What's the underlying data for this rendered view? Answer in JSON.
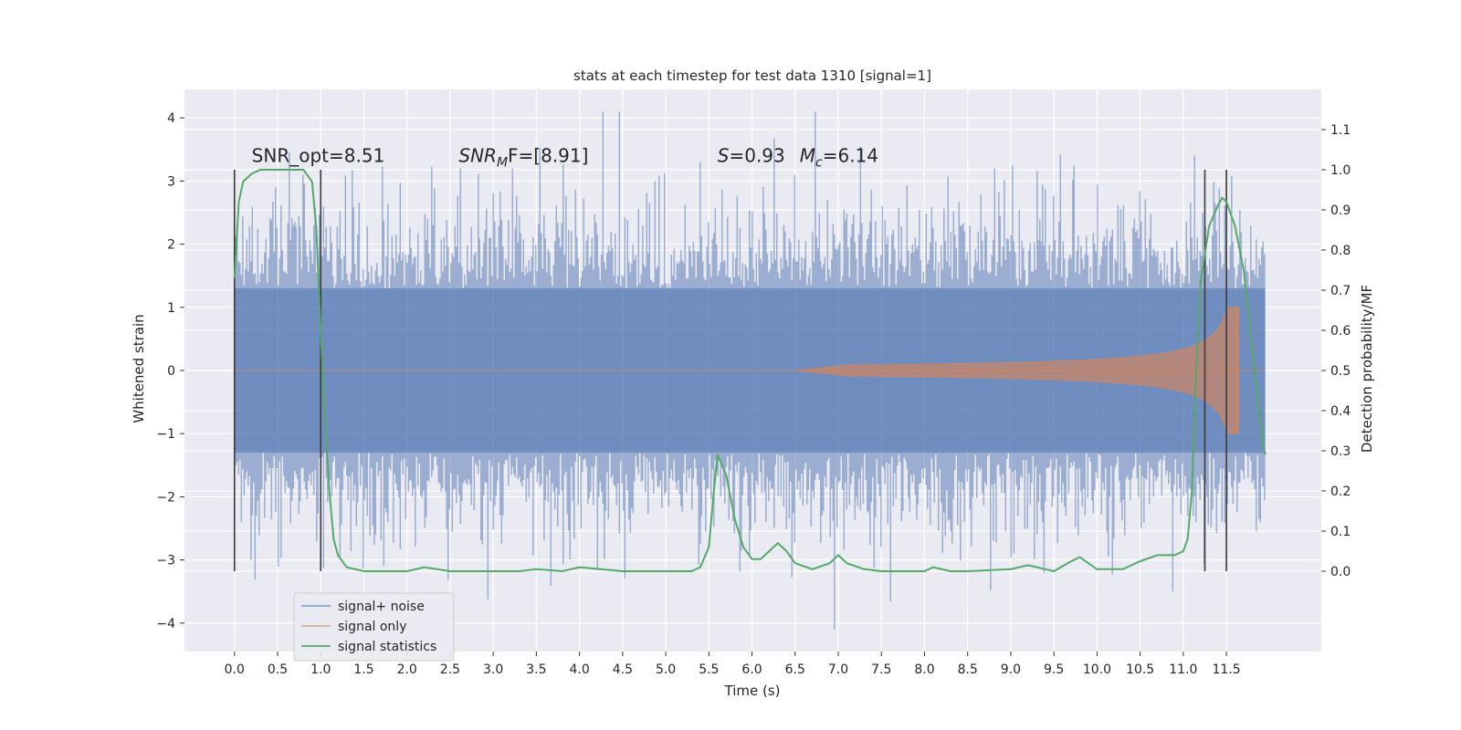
{
  "chart_data": {
    "type": "line",
    "title": "stats at each timestep for test data 1310 [signal=1]",
    "xlabel": "Time (s)",
    "ylabel_left": "Whitened strain",
    "ylabel_right": "Detection probability/MF",
    "xlim": [
      -0.58,
      12.6
    ],
    "ylim_left": [
      -4.45,
      4.45
    ],
    "ylim_right": [
      -0.2,
      1.2
    ],
    "x_ticks": [
      "0.0",
      "0.5",
      "1.0",
      "1.5",
      "2.0",
      "2.5",
      "3.0",
      "3.5",
      "4.0",
      "4.5",
      "5.0",
      "5.5",
      "6.0",
      "6.5",
      "7.0",
      "7.5",
      "8.0",
      "8.5",
      "9.0",
      "9.5",
      "10.0",
      "10.5",
      "11.0",
      "11.5"
    ],
    "y_ticks_left": [
      "4",
      "3",
      "2",
      "1",
      "0",
      "−1",
      "−2",
      "−3",
      "−4"
    ],
    "y_ticks_right": [
      "1.1",
      "1.0",
      "0.9",
      "0.8",
      "0.7",
      "0.6",
      "0.5",
      "0.4",
      "0.3",
      "0.2",
      "0.1",
      "0.0"
    ],
    "grid": true,
    "legend_position": "lower-left",
    "colors": {
      "background": "#eaeaf2",
      "noise": "#4c72b0",
      "signal": "#dd8452",
      "statistics": "#55a868",
      "vlines": "#3a3a3a"
    },
    "annotations": [
      {
        "x": 0.2,
        "y": 3.3,
        "text": "SNR_opt=8.51"
      },
      {
        "x": 2.6,
        "y": 3.3,
        "text": "SNR_MF=[8.91]",
        "mathvar": "SNR",
        "sub": "M",
        "rest": "F=[8.91]"
      },
      {
        "x": 5.6,
        "y": 3.3,
        "text": "S=0.93   M_c=6.14",
        "parts": [
          "S",
          "=0.93",
          "M",
          "c",
          "=6.14"
        ]
      }
    ],
    "vertical_lines_s": [
      0.0,
      1.0,
      11.25,
      11.5
    ],
    "series": [
      {
        "name": "signal+ noise",
        "axis": "left",
        "x_range": [
          0.0,
          11.95
        ],
        "envelope_bulk": 1.3,
        "spikes_peak": [
          4.1,
          3.9
        ]
      },
      {
        "name": "signal only",
        "axis": "left",
        "chirp_start": 6.5,
        "chirp_end": 11.65,
        "peak_amplitude": 1.0
      },
      {
        "name": "signal statistics",
        "axis": "right",
        "x": [
          0.0,
          0.05,
          0.1,
          0.2,
          0.3,
          0.5,
          0.8,
          0.9,
          0.95,
          1.0,
          1.05,
          1.1,
          1.15,
          1.2,
          1.3,
          1.5,
          2.0,
          2.2,
          2.5,
          3.0,
          3.3,
          3.5,
          3.8,
          4.0,
          4.5,
          5.0,
          5.3,
          5.4,
          5.5,
          5.55,
          5.6,
          5.7,
          5.8,
          5.9,
          6.0,
          6.1,
          6.2,
          6.3,
          6.4,
          6.5,
          6.7,
          6.9,
          7.0,
          7.1,
          7.3,
          7.5,
          8.0,
          8.1,
          8.3,
          8.5,
          9.0,
          9.2,
          9.5,
          9.7,
          9.8,
          10.0,
          10.3,
          10.5,
          10.7,
          10.9,
          11.0,
          11.05,
          11.1,
          11.15,
          11.2,
          11.3,
          11.4,
          11.45,
          11.5,
          11.6,
          11.7,
          11.8,
          11.9,
          11.95
        ],
        "y": [
          0.73,
          0.92,
          0.97,
          0.99,
          1.0,
          1.0,
          1.0,
          0.97,
          0.85,
          0.6,
          0.38,
          0.2,
          0.08,
          0.04,
          0.01,
          0.0,
          0.0,
          0.01,
          0.0,
          0.0,
          0.0,
          0.005,
          0.0,
          0.01,
          0.0,
          0.0,
          0.0,
          0.01,
          0.06,
          0.18,
          0.29,
          0.24,
          0.13,
          0.06,
          0.03,
          0.03,
          0.05,
          0.07,
          0.05,
          0.02,
          0.005,
          0.02,
          0.04,
          0.02,
          0.005,
          0.0,
          0.0,
          0.01,
          0.0,
          0.0,
          0.005,
          0.015,
          0.0,
          0.025,
          0.035,
          0.005,
          0.005,
          0.025,
          0.04,
          0.04,
          0.05,
          0.08,
          0.2,
          0.5,
          0.72,
          0.86,
          0.91,
          0.93,
          0.92,
          0.86,
          0.75,
          0.55,
          0.35,
          0.29
        ]
      }
    ]
  }
}
